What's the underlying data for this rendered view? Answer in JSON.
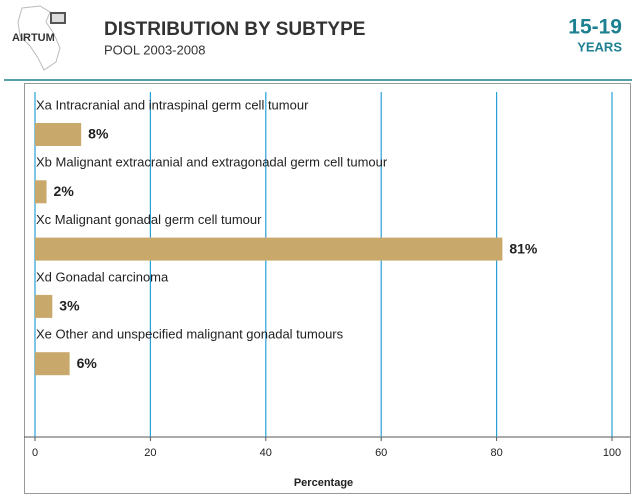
{
  "logo": "AIRTUM",
  "header": {
    "title": "DISTRIBUTION BY SUBTYPE",
    "subtitle": "POOL 2003-2008",
    "age": "15-19",
    "age_unit": "YEARS"
  },
  "chart_data": {
    "type": "bar",
    "orientation": "horizontal",
    "categories": [
      "Xa Intracranial and intraspinal germ cell tumour",
      "Xb Malignant extracranial and extragonadal germ cell tumour",
      "Xc Malignant gonadal germ cell tumour",
      "Xd Gonadal carcinoma",
      "Xe Other and unspecified malignant gonadal tumours"
    ],
    "values": [
      8,
      2,
      81,
      3,
      6
    ],
    "value_labels": [
      "8%",
      "2%",
      "81%",
      "3%",
      "6%"
    ],
    "color": "#c9a96b",
    "xlabel": "Percentage",
    "xlim": [
      0,
      100
    ],
    "xticks": [
      0,
      20,
      40,
      60,
      80,
      100
    ],
    "grid": true,
    "grid_color": "#2a9fd6"
  }
}
